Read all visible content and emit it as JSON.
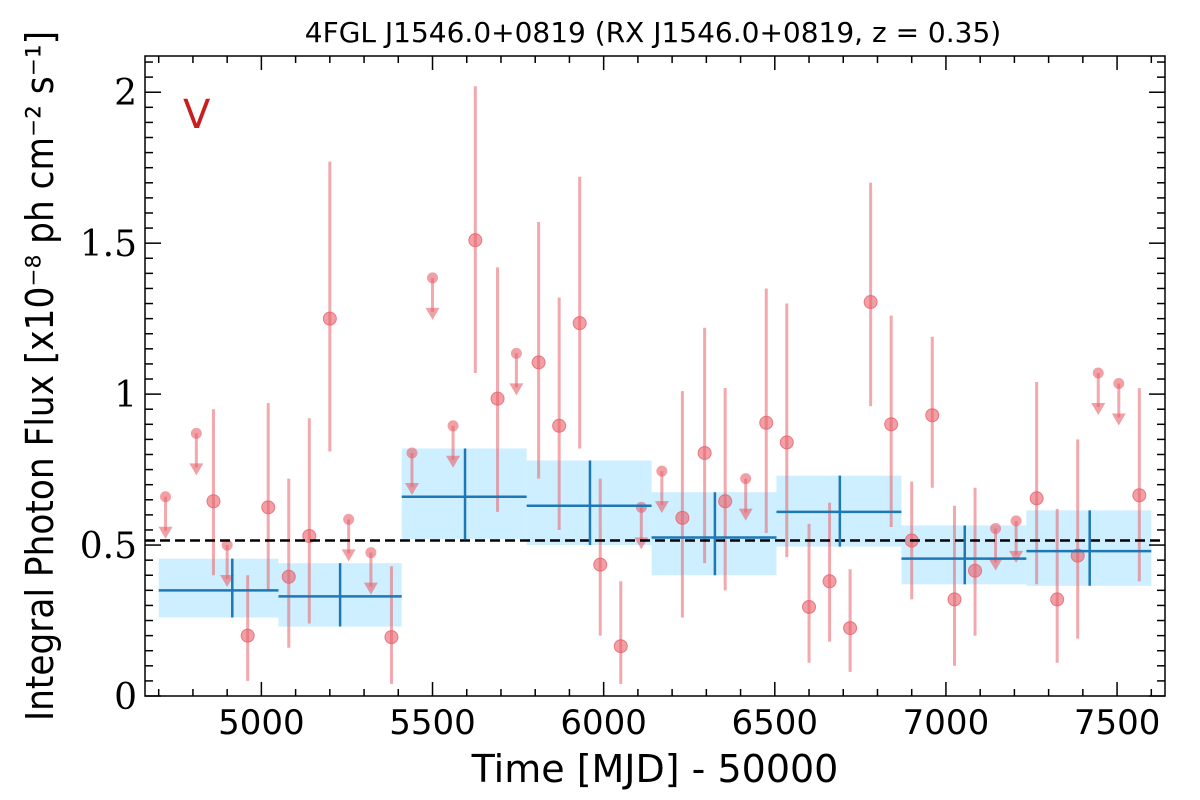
{
  "chart_data": {
    "type": "scatter",
    "title": "4FGL J1546.0+0819 (RX J1546.0+0819, z = 0.35)",
    "panel_label": "V",
    "xlabel": "Time [MJD] - 50000",
    "ylabel": "Integral Photon Flux [x10⁻⁸ ph cm⁻² s⁻¹]",
    "xlim": [
      4660,
      7640
    ],
    "ylim": [
      0,
      2.12
    ],
    "xticks": [
      5000,
      5500,
      6000,
      6500,
      7000,
      7500
    ],
    "xtick_labels": [
      "5000",
      "5500",
      "6000",
      "6500",
      "7000",
      "7500"
    ],
    "yticks": [
      0,
      0.5,
      1,
      1.5,
      2
    ],
    "ytick_labels": [
      "0",
      "0.5",
      "1",
      "1.5",
      "2"
    ],
    "mean_flux": 0.515,
    "grid": false,
    "colors": {
      "points": "#e8606a",
      "bins": "#1f77b4",
      "bin_fill": "#cdefff",
      "panel_label": "#c81e1e",
      "mean_line": "#000000"
    },
    "series": [
      {
        "name": "",
        "kind": "measurements",
        "points": [
          {
            "x": 4860,
            "y": 0.645,
            "lo": 0.4,
            "hi": 0.95
          },
          {
            "x": 4960,
            "y": 0.2,
            "lo": 0.05,
            "hi": 0.4
          },
          {
            "x": 5020,
            "y": 0.625,
            "lo": 0.35,
            "hi": 0.97
          },
          {
            "x": 5080,
            "y": 0.395,
            "lo": 0.16,
            "hi": 0.72
          },
          {
            "x": 5140,
            "y": 0.53,
            "lo": 0.24,
            "hi": 0.92
          },
          {
            "x": 5200,
            "y": 1.25,
            "lo": 0.81,
            "hi": 1.77
          },
          {
            "x": 5380,
            "y": 0.195,
            "lo": 0.04,
            "hi": 0.43
          },
          {
            "x": 5625,
            "y": 1.51,
            "lo": 1.07,
            "hi": 2.02
          },
          {
            "x": 5690,
            "y": 0.985,
            "lo": 0.61,
            "hi": 1.42
          },
          {
            "x": 5810,
            "y": 1.105,
            "lo": 0.72,
            "hi": 1.57
          },
          {
            "x": 5870,
            "y": 0.895,
            "lo": 0.55,
            "hi": 1.32
          },
          {
            "x": 5930,
            "y": 1.235,
            "lo": 0.82,
            "hi": 1.72
          },
          {
            "x": 5990,
            "y": 0.435,
            "lo": 0.2,
            "hi": 0.72
          },
          {
            "x": 6050,
            "y": 0.165,
            "lo": 0.04,
            "hi": 0.38
          },
          {
            "x": 6230,
            "y": 0.59,
            "lo": 0.26,
            "hi": 1.01
          },
          {
            "x": 6295,
            "y": 0.805,
            "lo": 0.44,
            "hi": 1.22
          },
          {
            "x": 6355,
            "y": 0.645,
            "lo": 0.35,
            "hi": 1.02
          },
          {
            "x": 6475,
            "y": 0.905,
            "lo": 0.54,
            "hi": 1.35
          },
          {
            "x": 6535,
            "y": 0.84,
            "lo": 0.46,
            "hi": 1.3
          },
          {
            "x": 6600,
            "y": 0.295,
            "lo": 0.11,
            "hi": 0.57
          },
          {
            "x": 6660,
            "y": 0.38,
            "lo": 0.18,
            "hi": 0.64
          },
          {
            "x": 6720,
            "y": 0.225,
            "lo": 0.08,
            "hi": 0.42
          },
          {
            "x": 6780,
            "y": 1.305,
            "lo": 0.96,
            "hi": 1.7
          },
          {
            "x": 6840,
            "y": 0.9,
            "lo": 0.56,
            "hi": 1.26
          },
          {
            "x": 6900,
            "y": 0.515,
            "lo": 0.32,
            "hi": 0.71
          },
          {
            "x": 6960,
            "y": 0.93,
            "lo": 0.69,
            "hi": 1.19
          },
          {
            "x": 7025,
            "y": 0.32,
            "lo": 0.1,
            "hi": 0.63
          },
          {
            "x": 7085,
            "y": 0.415,
            "lo": 0.2,
            "hi": 0.69
          },
          {
            "x": 7265,
            "y": 0.655,
            "lo": 0.37,
            "hi": 1.04
          },
          {
            "x": 7325,
            "y": 0.32,
            "lo": 0.11,
            "hi": 0.62
          },
          {
            "x": 7385,
            "y": 0.465,
            "lo": 0.19,
            "hi": 0.85
          },
          {
            "x": 7565,
            "y": 0.665,
            "lo": 0.38,
            "hi": 1.02
          }
        ]
      },
      {
        "name": "",
        "kind": "upper_limits",
        "points": [
          {
            "x": 4720,
            "y": 0.66
          },
          {
            "x": 4810,
            "y": 0.87
          },
          {
            "x": 4900,
            "y": 0.5
          },
          {
            "x": 5255,
            "y": 0.585
          },
          {
            "x": 5320,
            "y": 0.475
          },
          {
            "x": 5440,
            "y": 0.805
          },
          {
            "x": 5500,
            "y": 1.385
          },
          {
            "x": 5560,
            "y": 0.895
          },
          {
            "x": 5745,
            "y": 1.135
          },
          {
            "x": 6110,
            "y": 0.625
          },
          {
            "x": 6170,
            "y": 0.745
          },
          {
            "x": 6415,
            "y": 0.72
          },
          {
            "x": 7145,
            "y": 0.555
          },
          {
            "x": 7205,
            "y": 0.58
          },
          {
            "x": 7445,
            "y": 1.07
          },
          {
            "x": 7505,
            "y": 1.035
          }
        ]
      },
      {
        "name": "",
        "kind": "bins",
        "bins": [
          {
            "x0": 4700,
            "x1": 5050,
            "xc": 4915,
            "y": 0.35,
            "lo": 0.26,
            "hi": 0.455
          },
          {
            "x0": 5050,
            "x1": 5410,
            "xc": 5230,
            "y": 0.33,
            "lo": 0.23,
            "hi": 0.44
          },
          {
            "x0": 5410,
            "x1": 5775,
            "xc": 5595,
            "y": 0.66,
            "lo": 0.52,
            "hi": 0.82
          },
          {
            "x0": 5775,
            "x1": 6140,
            "xc": 5960,
            "y": 0.63,
            "lo": 0.5,
            "hi": 0.78
          },
          {
            "x0": 6140,
            "x1": 6505,
            "xc": 6325,
            "y": 0.525,
            "lo": 0.4,
            "hi": 0.675
          },
          {
            "x0": 6505,
            "x1": 6870,
            "xc": 6690,
            "y": 0.61,
            "lo": 0.495,
            "hi": 0.73
          },
          {
            "x0": 6870,
            "x1": 7235,
            "xc": 7055,
            "y": 0.455,
            "lo": 0.37,
            "hi": 0.565
          },
          {
            "x0": 7235,
            "x1": 7600,
            "xc": 7420,
            "y": 0.48,
            "lo": 0.365,
            "hi": 0.615
          }
        ]
      }
    ]
  }
}
